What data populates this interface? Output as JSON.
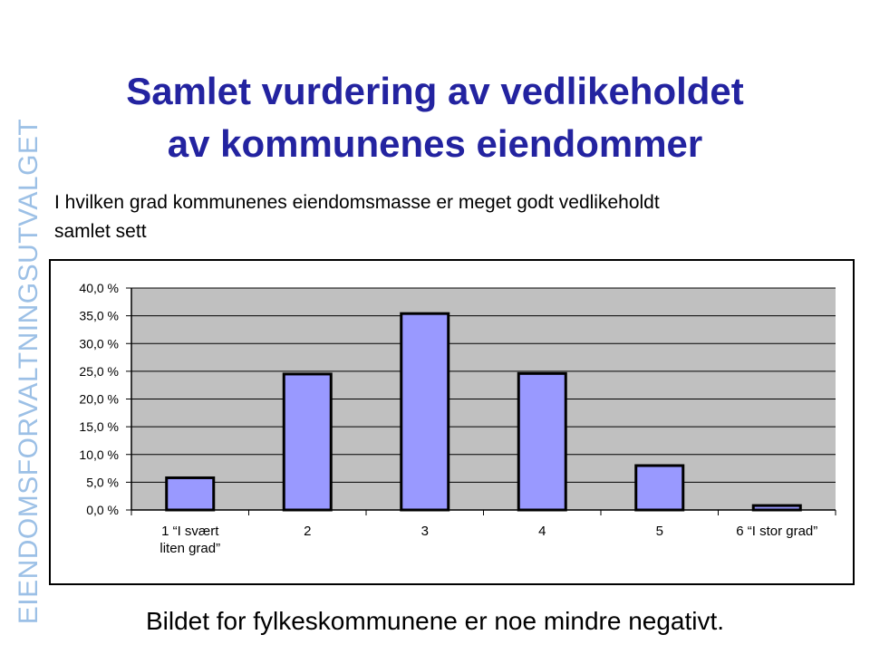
{
  "side_label": "EIENDOMSFORVALTNINGSUTVALGET",
  "footer": "Bildet for fylkeskommunene er noe mindre negativt.",
  "chart_data": {
    "type": "bar",
    "title": "Samlet vurdering av vedlikeholdet\nav kommunenes eiendommer",
    "subtitle": "I hvilken grad kommunenes eiendomsmasse er meget godt vedlikeholdt\nsamlet sett",
    "categories": [
      "1 “I svært\nliten grad”",
      "2",
      "3",
      "4",
      "5",
      "6 “I stor grad”"
    ],
    "values": [
      5.8,
      24.5,
      35.4,
      24.6,
      8.0,
      0.8
    ],
    "color": "#9999ff",
    "ylim": [
      0,
      40
    ],
    "yticks": [
      {
        "value": 0,
        "label": "0,0 %"
      },
      {
        "value": 5,
        "label": "5,0 %"
      },
      {
        "value": 10,
        "label": "10,0 %"
      },
      {
        "value": 15,
        "label": "15,0 %"
      },
      {
        "value": 20,
        "label": "20,0 %"
      },
      {
        "value": 25,
        "label": "25,0 %"
      },
      {
        "value": 30,
        "label": "30,0 %"
      },
      {
        "value": 35,
        "label": "35,0 %"
      },
      {
        "value": 40,
        "label": "40,0 %"
      }
    ],
    "grid": true
  }
}
